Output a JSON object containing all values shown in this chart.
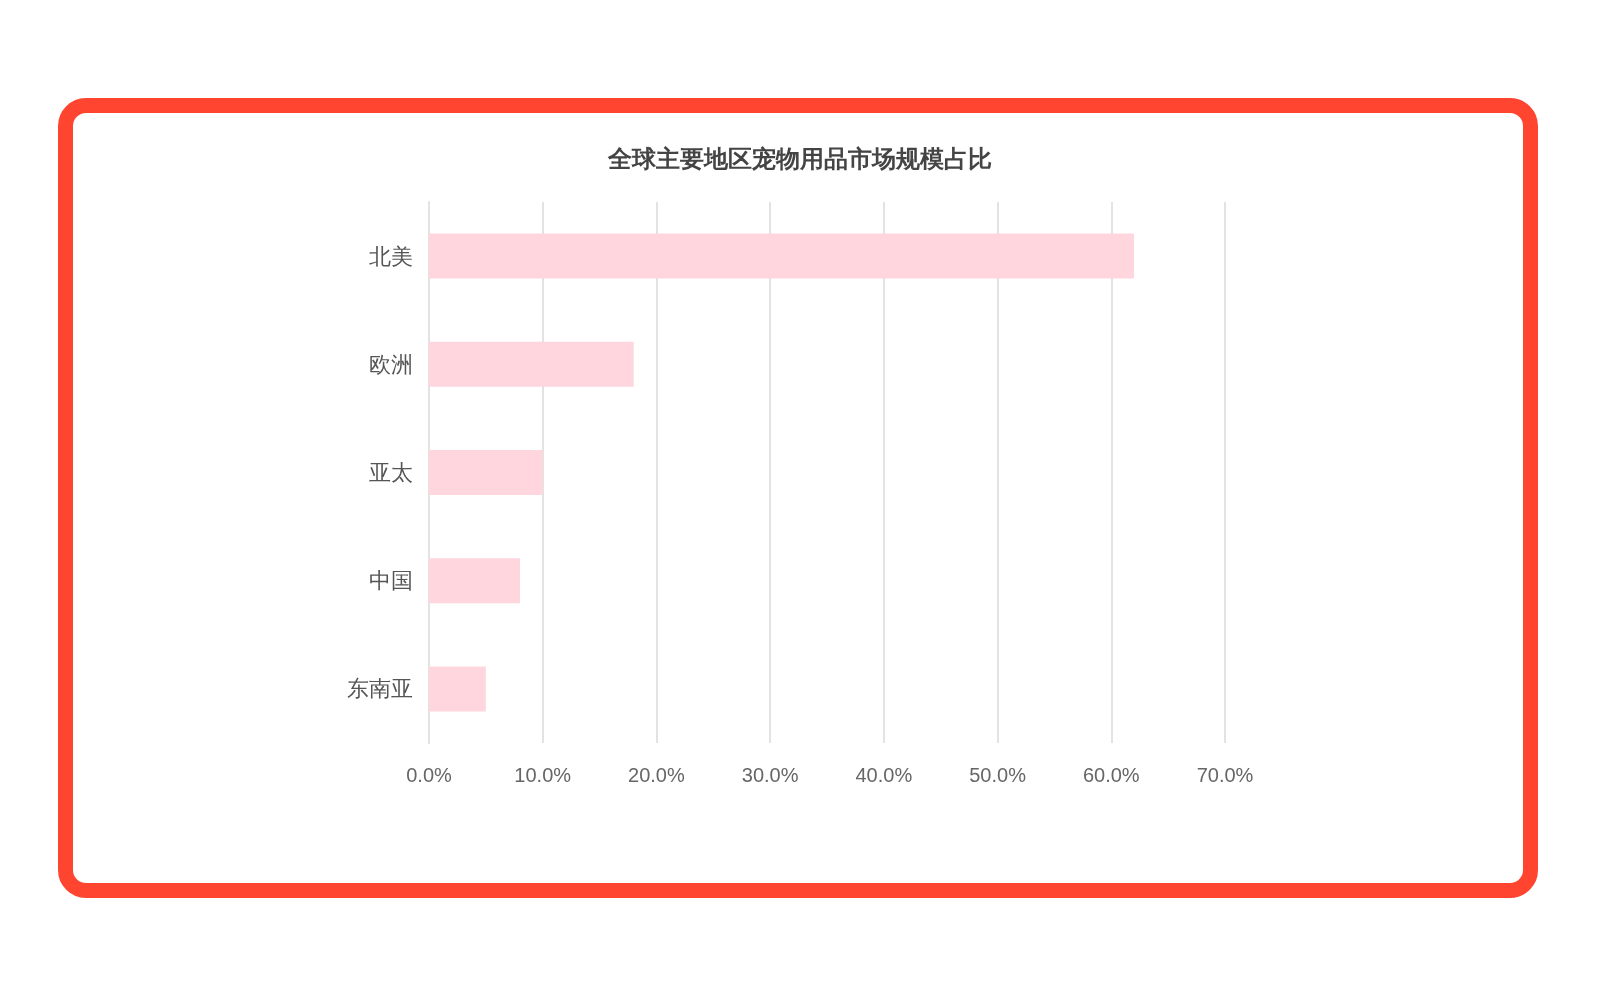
{
  "chart_data": {
    "type": "bar",
    "orientation": "horizontal",
    "title": "全球主要地区宠物用品市场规模占比",
    "categories": [
      "北美",
      "欧洲",
      "亚太",
      "中国",
      "东南亚"
    ],
    "values": [
      62,
      18,
      10,
      8,
      5
    ],
    "color": "#ffd6de",
    "xlim": [
      0,
      70
    ],
    "xticks": [
      {
        "value": 0,
        "label": "0.0%"
      },
      {
        "value": 10,
        "label": "10.0%"
      },
      {
        "value": 20,
        "label": "20.0%"
      },
      {
        "value": 30,
        "label": "30.0%"
      },
      {
        "value": 40,
        "label": "40.0%"
      },
      {
        "value": 50,
        "label": "50.0%"
      },
      {
        "value": 60,
        "label": "60.0%"
      },
      {
        "value": 70,
        "label": "70.0%"
      }
    ],
    "grid": "x"
  }
}
